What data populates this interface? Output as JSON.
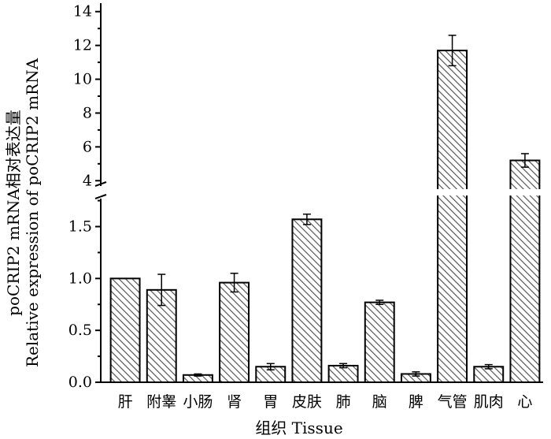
{
  "chart_data": {
    "type": "bar",
    "title": "",
    "xlabel": "组织 Tissue",
    "ylabel_line1": "poCRIP2 mRNA相对表达量",
    "ylabel_line2": "Relative expression of poCRIP2 mRNA",
    "categories": [
      "肝",
      "附睾",
      "小肠",
      "肾",
      "胃",
      "皮肤",
      "肺",
      "脑",
      "脾",
      "气管",
      "肌肉",
      "心"
    ],
    "values": [
      1.0,
      0.89,
      0.07,
      0.96,
      0.15,
      1.57,
      0.16,
      0.77,
      0.08,
      11.7,
      0.15,
      5.2
    ],
    "errors": [
      0.0,
      0.15,
      0.01,
      0.09,
      0.03,
      0.05,
      0.02,
      0.02,
      0.02,
      0.9,
      0.02,
      0.4
    ],
    "axis_break": {
      "lower_range": [
        0,
        1.8
      ],
      "upper_range": [
        3.5,
        14.5
      ]
    },
    "y_ticks_lower": [
      "0.0",
      "0.5",
      "1.0",
      "1.5"
    ],
    "y_ticks_upper": [
      "4",
      "6",
      "8",
      "10",
      "12",
      "14"
    ],
    "grid": false,
    "bar_fill": "hatched-diagonal",
    "colors": {
      "bar_fill": "#ffffff",
      "hatch": "#555555",
      "stroke": "#000000"
    }
  }
}
